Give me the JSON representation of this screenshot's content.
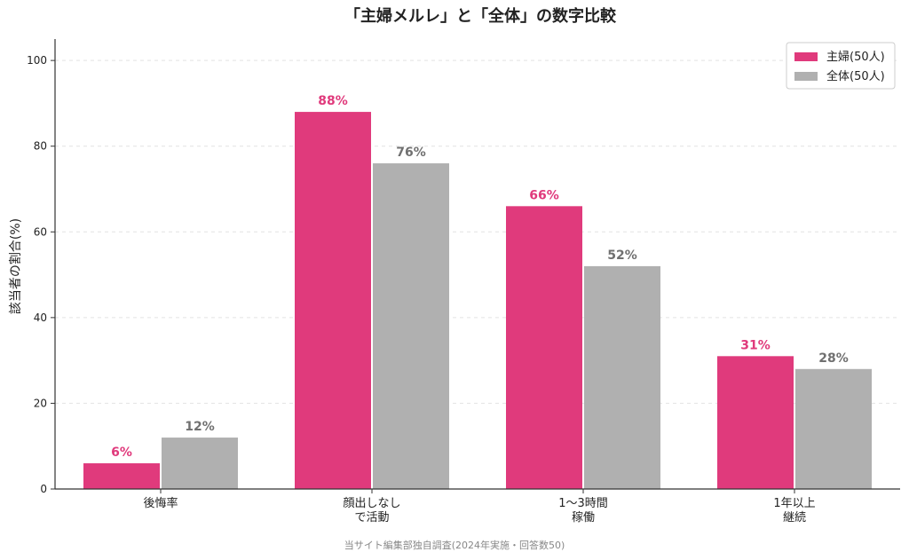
{
  "chart_data": {
    "type": "bar",
    "title": "「主婦メルレ」と「全体」の数字比較",
    "ylabel": "該当者の割合(%)",
    "xlabel": "",
    "categories": [
      [
        "後悔率"
      ],
      [
        "顔出しなし",
        "で活動"
      ],
      [
        "1〜3時間",
        "稼働"
      ],
      [
        "1年以上",
        "継続"
      ]
    ],
    "series": [
      {
        "name": "主婦(50人)",
        "color": "#e03a7c",
        "values": [
          6,
          88,
          66,
          31
        ]
      },
      {
        "name": "全体(50人)",
        "color": "#b0b0b0",
        "values": [
          12,
          76,
          52,
          28
        ]
      }
    ],
    "value_label_colors": [
      "#e03a7c",
      "#707070"
    ],
    "value_suffix": "%",
    "ylim": [
      0,
      105
    ],
    "yticks": [
      0,
      20,
      40,
      60,
      80,
      100
    ],
    "grid": true,
    "legend_position": "top-right",
    "source": "当サイト編集部独自調査(2024年実施・回答数50)"
  }
}
